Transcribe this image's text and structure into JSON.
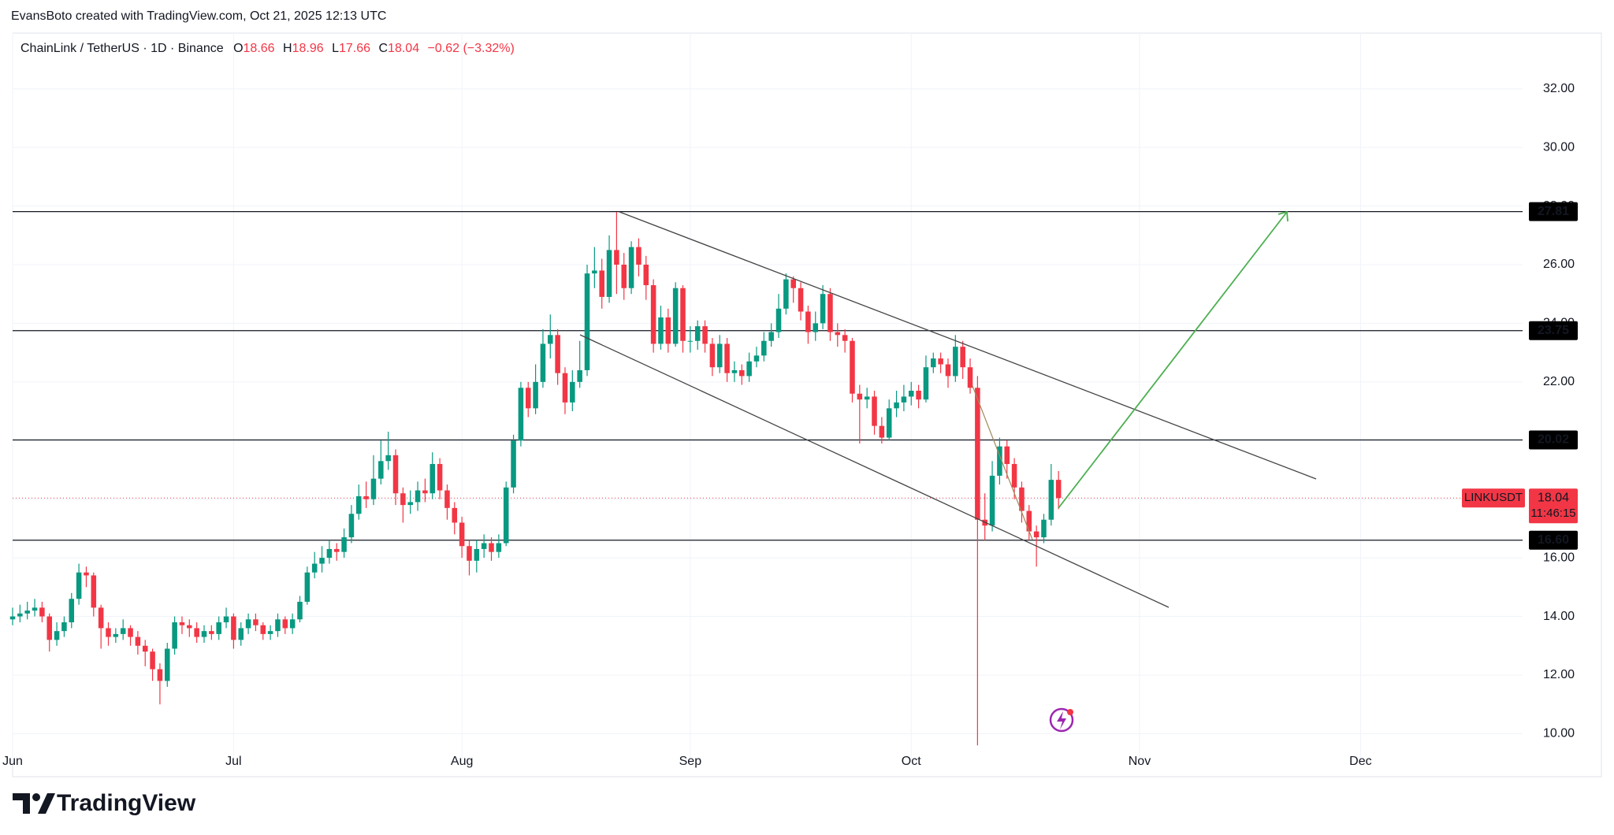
{
  "header": {
    "credit": "EvansBoto created with TradingView.com, Oct 21, 2025 12:13 UTC",
    "symbol": "ChainLink / TetherUS · 1D · Binance",
    "ohlc_letters": [
      "O",
      "H",
      "L",
      "C"
    ],
    "change": "−0.62 (−3.32%)"
  },
  "chart_data": {
    "type": "candlestick",
    "series": [
      {
        "name": "LINKUSDT",
        "up_color": "#089981",
        "down_color": "#f23645",
        "open": [
          13.9,
          14.0,
          14.1,
          14.2,
          14.3,
          14.0,
          13.2,
          13.5,
          13.8,
          14.6,
          15.5,
          15.4,
          14.3,
          13.6,
          13.3,
          13.4,
          13.6,
          13.3,
          13.0,
          12.8,
          12.2,
          11.8,
          12.9,
          13.8,
          13.7,
          13.6,
          13.3,
          13.5,
          13.4,
          13.8,
          14.0,
          13.2,
          13.6,
          13.9,
          13.7,
          13.4,
          13.5,
          13.9,
          13.6,
          13.9,
          14.5,
          15.5,
          15.8,
          16.0,
          16.3,
          16.2,
          16.7,
          17.5,
          18.1,
          18.0,
          18.7,
          19.3,
          19.5,
          18.2,
          17.8,
          17.9,
          18.3,
          18.2,
          19.2,
          18.3,
          17.7,
          17.2,
          16.4,
          15.9,
          16.3,
          16.5,
          16.2,
          16.5,
          18.4,
          20.0,
          21.8,
          21.1,
          22.0,
          23.3,
          23.6,
          22.3,
          21.3,
          22.0,
          22.4,
          25.7,
          25.8,
          24.9,
          26.5,
          26.0,
          25.2,
          26.6,
          26.0,
          25.3,
          23.3,
          24.2,
          23.3,
          25.2,
          23.4,
          23.4,
          23.9,
          23.3,
          22.5,
          23.3,
          22.3,
          22.4,
          22.2,
          22.7,
          22.9,
          23.4,
          23.7,
          24.5,
          25.5,
          25.2,
          24.4,
          23.7,
          24.0,
          25.0,
          23.7,
          23.6,
          23.4,
          21.6,
          21.4,
          21.5,
          20.5,
          20.1,
          21.1,
          21.3,
          21.5,
          21.7,
          21.4,
          22.5,
          22.8,
          22.6,
          22.2,
          23.2,
          22.5,
          21.8,
          17.3,
          17.1,
          18.8,
          19.8,
          19.2,
          18.4,
          17.6,
          16.9,
          16.7,
          17.3,
          18.66
        ],
        "high": [
          14.3,
          14.4,
          14.5,
          14.6,
          14.5,
          14.1,
          13.8,
          14.0,
          14.8,
          15.8,
          15.7,
          15.5,
          14.4,
          13.8,
          13.6,
          13.9,
          13.7,
          13.5,
          13.2,
          12.9,
          12.4,
          13.1,
          14.0,
          14.0,
          13.9,
          13.8,
          13.7,
          13.7,
          14.0,
          14.3,
          14.1,
          13.8,
          14.1,
          14.1,
          13.8,
          13.7,
          14.1,
          14.0,
          14.1,
          14.7,
          15.7,
          16.2,
          16.4,
          16.6,
          16.5,
          17.0,
          17.8,
          18.5,
          18.6,
          19.5,
          20.0,
          20.3,
          19.7,
          18.4,
          18.3,
          18.6,
          18.7,
          19.6,
          19.4,
          18.5,
          17.9,
          17.4,
          16.6,
          16.6,
          16.8,
          16.7,
          16.8,
          18.6,
          20.2,
          22.0,
          22.0,
          22.6,
          23.8,
          24.3,
          23.8,
          22.5,
          22.4,
          23.4,
          26.0,
          26.6,
          26.2,
          27.0,
          27.8,
          26.4,
          26.8,
          26.9,
          26.3,
          25.5,
          24.6,
          24.5,
          25.4,
          25.3,
          23.9,
          24.1,
          24.1,
          23.5,
          23.6,
          23.5,
          22.7,
          22.6,
          23.0,
          23.2,
          23.7,
          24.0,
          25.0,
          25.7,
          25.6,
          25.4,
          24.6,
          24.4,
          25.3,
          25.2,
          24.0,
          23.8,
          23.5,
          21.9,
          21.8,
          21.7,
          20.8,
          21.4,
          21.7,
          21.9,
          22.0,
          21.9,
          22.9,
          23.0,
          23.0,
          22.8,
          23.6,
          23.4,
          22.8,
          22.2,
          18.2,
          19.3,
          20.1,
          20.0,
          19.4,
          18.6,
          17.8,
          17.1,
          17.5,
          19.2,
          18.96
        ],
        "low": [
          13.7,
          13.8,
          13.9,
          14.0,
          13.8,
          12.8,
          13.0,
          13.3,
          13.6,
          14.4,
          15.0,
          14.0,
          12.9,
          13.0,
          13.1,
          13.2,
          13.0,
          12.7,
          12.3,
          11.8,
          11.0,
          11.6,
          12.7,
          13.4,
          13.3,
          13.1,
          13.1,
          13.2,
          13.2,
          13.6,
          12.9,
          13.0,
          13.4,
          13.5,
          13.2,
          13.2,
          13.3,
          13.4,
          13.4,
          13.8,
          14.4,
          15.3,
          15.5,
          15.8,
          15.9,
          16.0,
          16.5,
          17.3,
          17.7,
          17.8,
          18.5,
          19.0,
          17.8,
          17.2,
          17.5,
          17.6,
          17.9,
          18.0,
          18.0,
          17.3,
          16.8,
          16.0,
          15.4,
          15.5,
          16.0,
          15.9,
          16.0,
          16.4,
          18.2,
          19.8,
          20.8,
          20.9,
          21.8,
          22.8,
          21.9,
          20.9,
          21.0,
          21.8,
          22.2,
          25.2,
          24.5,
          24.7,
          25.0,
          24.8,
          25.0,
          25.6,
          24.8,
          23.0,
          23.1,
          23.0,
          23.2,
          23.0,
          23.0,
          23.1,
          23.0,
          22.2,
          22.3,
          22.0,
          22.0,
          21.9,
          22.0,
          22.5,
          22.7,
          23.2,
          23.5,
          24.3,
          24.7,
          24.1,
          23.3,
          23.4,
          23.8,
          23.4,
          23.2,
          23.0,
          21.3,
          19.9,
          21.1,
          20.2,
          19.9,
          20.0,
          20.8,
          21.0,
          21.2,
          21.1,
          21.3,
          22.3,
          22.3,
          21.8,
          22.0,
          22.1,
          21.6,
          9.6,
          16.6,
          16.9,
          18.5,
          18.7,
          18.0,
          17.2,
          16.6,
          15.7,
          16.5,
          17.1,
          17.66
        ],
        "close": [
          14.0,
          14.1,
          14.2,
          14.3,
          14.0,
          13.2,
          13.5,
          13.8,
          14.6,
          15.5,
          15.4,
          14.3,
          13.6,
          13.3,
          13.4,
          13.6,
          13.3,
          13.0,
          12.8,
          12.2,
          11.8,
          12.9,
          13.8,
          13.7,
          13.6,
          13.3,
          13.5,
          13.4,
          13.8,
          14.0,
          13.2,
          13.6,
          13.9,
          13.7,
          13.4,
          13.5,
          13.9,
          13.6,
          13.9,
          14.5,
          15.5,
          15.8,
          16.0,
          16.3,
          16.2,
          16.7,
          17.5,
          18.1,
          18.0,
          18.7,
          19.3,
          19.5,
          18.2,
          17.8,
          17.9,
          18.3,
          18.2,
          19.2,
          18.3,
          17.7,
          17.2,
          16.4,
          15.9,
          16.3,
          16.5,
          16.2,
          16.5,
          18.4,
          20.0,
          21.8,
          21.1,
          22.0,
          23.3,
          23.6,
          22.3,
          21.3,
          22.0,
          22.4,
          25.7,
          25.8,
          24.9,
          26.5,
          26.0,
          25.2,
          26.6,
          26.0,
          25.3,
          23.3,
          24.2,
          23.3,
          25.2,
          23.4,
          23.4,
          23.9,
          23.3,
          22.5,
          23.3,
          22.3,
          22.4,
          22.2,
          22.7,
          22.9,
          23.4,
          23.7,
          24.5,
          25.5,
          25.2,
          24.4,
          23.7,
          24.0,
          25.0,
          23.7,
          23.6,
          23.4,
          21.6,
          21.4,
          21.5,
          20.5,
          20.1,
          21.1,
          21.3,
          21.5,
          21.7,
          21.4,
          22.5,
          22.8,
          22.6,
          22.2,
          23.2,
          22.5,
          21.8,
          17.3,
          17.1,
          18.8,
          19.8,
          19.2,
          18.4,
          17.6,
          16.9,
          16.7,
          17.3,
          18.66,
          18.04
        ]
      }
    ],
    "xlim": [
      0,
      205
    ],
    "xticks": [
      {
        "value": 0,
        "label": "Jun"
      },
      {
        "value": 30,
        "label": "Jul"
      },
      {
        "value": 61,
        "label": "Aug"
      },
      {
        "value": 92,
        "label": "Sep"
      },
      {
        "value": 122,
        "label": "Oct"
      },
      {
        "value": 153,
        "label": "Nov"
      },
      {
        "value": 183,
        "label": "Dec"
      }
    ],
    "ylim": [
      9.5,
      33.9
    ],
    "yticks": [
      {
        "value": 10,
        "label": "10.00"
      },
      {
        "value": 12,
        "label": "12.00"
      },
      {
        "value": 14,
        "label": "14.00"
      },
      {
        "value": 16,
        "label": "16.00"
      },
      {
        "value": 18,
        "label": "18.00"
      },
      {
        "value": 20,
        "label": "20.00"
      },
      {
        "value": 22,
        "label": "22.00"
      },
      {
        "value": 24,
        "label": "24.00"
      },
      {
        "value": 26,
        "label": "26.00"
      },
      {
        "value": 28,
        "label": "28.00"
      },
      {
        "value": 30,
        "label": "30.00"
      },
      {
        "value": 32,
        "label": "32.00"
      }
    ],
    "levels": [
      27.81,
      23.75,
      20.02,
      {
        "value": 16.6,
        "label": "16.60"
      }
    ],
    "countdown": "11:46:15",
    "grid": true
  },
  "footer": {
    "brand": "TradingView"
  }
}
